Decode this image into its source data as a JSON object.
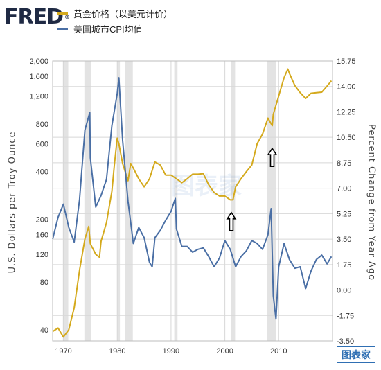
{
  "header": {
    "logo": "FRED",
    "logo_mark": "®"
  },
  "watermark": "图表家",
  "chart_data": {
    "type": "line",
    "legend_position": "top-left",
    "grid": true,
    "xlim": [
      1968,
      2020
    ],
    "x_ticks": [
      1970,
      1980,
      1990,
      2000,
      2010
    ],
    "y_left": {
      "label": "U.S. Dollars per Troy Ounce",
      "scale": "log",
      "lim": [
        34,
        2000
      ],
      "ticks": [
        40,
        80,
        120,
        160,
        200,
        400,
        600,
        800,
        1200,
        1600,
        2000
      ],
      "tick_labels": [
        "40",
        "80",
        "120",
        "160",
        "200",
        "400",
        "600",
        "800",
        "1,200",
        "1,600",
        "2,000"
      ]
    },
    "y_right": {
      "label": "Percent Change from Year Ago",
      "scale": "linear",
      "lim": [
        -3.5,
        15.75
      ],
      "ticks": [
        -3.5,
        -1.75,
        0,
        1.75,
        3.5,
        5.25,
        7,
        8.75,
        10.5,
        12.25,
        14,
        15.75
      ],
      "tick_labels": [
        "-3.50",
        "-1.75",
        "0.00",
        "1.75",
        "3.50",
        "5.25",
        "7.00",
        "8.75",
        "10.50",
        "12.25",
        "14.00",
        "15.75"
      ]
    },
    "recessions": [
      [
        1969.9,
        1970.9
      ],
      [
        1973.9,
        1975.2
      ],
      [
        1980.0,
        1980.5
      ],
      [
        1981.5,
        1982.9
      ],
      [
        1990.6,
        1991.2
      ],
      [
        2001.2,
        2001.9
      ],
      [
        2007.9,
        2009.5
      ]
    ],
    "series": [
      {
        "name": "黄金价格（以美元计价）",
        "axis": "left",
        "color": "#d4a91c",
        "x": [
          1968,
          1969,
          1970,
          1971,
          1972,
          1973,
          1974,
          1974.7,
          1975,
          1976,
          1976.7,
          1977,
          1978,
          1979,
          1979.5,
          1980,
          1980.3,
          1981,
          1982,
          1982.5,
          1983,
          1984,
          1985,
          1986,
          1987,
          1988,
          1989,
          1990,
          1991,
          1992,
          1993,
          1994,
          1995,
          1996,
          1997,
          1998,
          1999,
          2000,
          2001,
          2001.5,
          2002,
          2003,
          2004,
          2005,
          2006,
          2007,
          2008,
          2008.8,
          2009,
          2010,
          2011,
          2011.7,
          2012,
          2013,
          2014,
          2015,
          2016,
          2017,
          2018,
          2019,
          2019.8
        ],
        "values": [
          39,
          41,
          36,
          40,
          55,
          95,
          150,
          180,
          140,
          120,
          115,
          145,
          190,
          300,
          450,
          650,
          600,
          450,
          350,
          450,
          420,
          360,
          320,
          360,
          460,
          440,
          380,
          380,
          360,
          340,
          360,
          385,
          385,
          388,
          330,
          295,
          280,
          280,
          265,
          265,
          320,
          360,
          400,
          440,
          600,
          690,
          870,
          780,
          920,
          1200,
          1570,
          1780,
          1670,
          1400,
          1260,
          1160,
          1250,
          1260,
          1270,
          1390,
          1500
        ]
      },
      {
        "name": "美国城市CPI均值",
        "axis": "right",
        "color": "#4a6fa5",
        "x": [
          1968,
          1969,
          1970,
          1971,
          1972,
          1973,
          1974,
          1974.9,
          1975,
          1976,
          1977,
          1978,
          1979,
          1980,
          1980.3,
          1981,
          1982,
          1983,
          1984,
          1985,
          1986,
          1986.5,
          1987,
          1988,
          1989,
          1990,
          1990.8,
          1991,
          1992,
          1993,
          1994,
          1995,
          1996,
          1997,
          1998,
          1999,
          2000,
          2001,
          2002,
          2003,
          2004,
          2005,
          2006,
          2007,
          2008,
          2008.6,
          2009,
          2009.5,
          2010,
          2011,
          2012,
          2013,
          2014,
          2015,
          2016,
          2017,
          2018,
          2019,
          2019.8
        ],
        "values": [
          3.5,
          5.0,
          5.9,
          4.3,
          3.3,
          6.2,
          11.0,
          12.2,
          9.1,
          5.7,
          6.5,
          7.6,
          11.3,
          13.5,
          14.6,
          10.3,
          6.1,
          3.2,
          4.3,
          3.6,
          1.9,
          1.6,
          3.6,
          4.1,
          4.8,
          5.4,
          6.3,
          4.2,
          3.0,
          3.0,
          2.6,
          2.8,
          2.9,
          2.3,
          1.6,
          2.2,
          3.4,
          2.8,
          1.6,
          2.3,
          2.7,
          3.4,
          3.2,
          2.8,
          3.8,
          5.6,
          -0.4,
          -2.0,
          1.6,
          3.2,
          2.1,
          1.5,
          1.6,
          0.1,
          1.3,
          2.1,
          2.4,
          1.8,
          2.3
        ]
      }
    ],
    "annotations": [
      {
        "type": "arrow-up",
        "x": 2001.2,
        "axis": "left",
        "y": 220
      },
      {
        "type": "arrow-up",
        "x": 2008.8,
        "axis": "left",
        "y": 560
      }
    ]
  }
}
